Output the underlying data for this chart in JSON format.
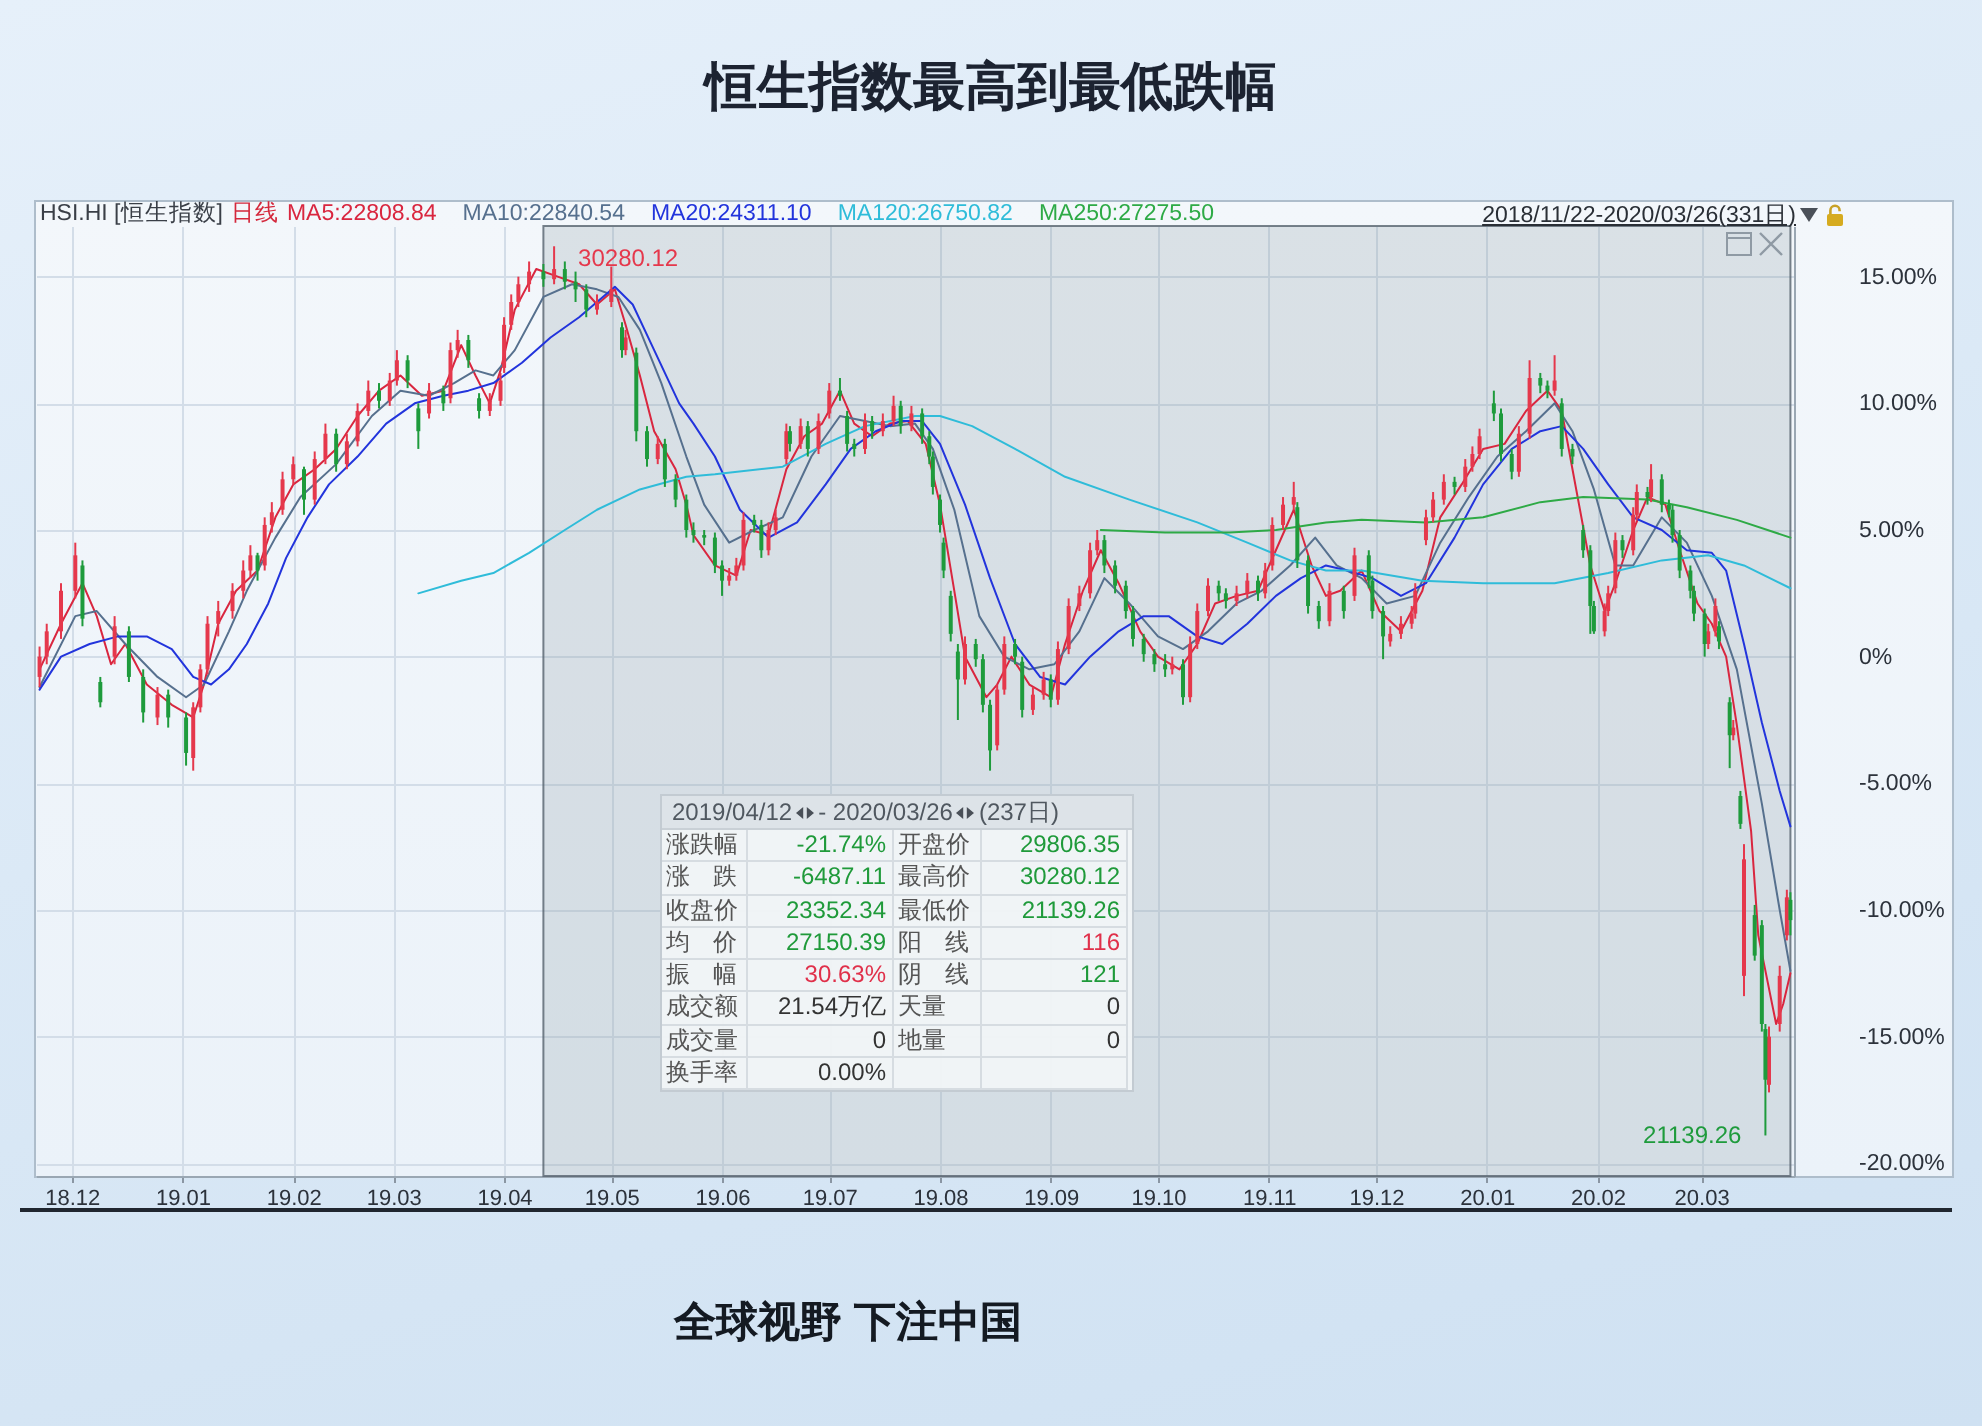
{
  "chart_data": {
    "type": "candlestick",
    "title": "恒生指数最高到最低跌幅",
    "subtitle": "HSI.HI [恒生指数]",
    "xlim": [
      "2018-11-21",
      "2020-03-27"
    ],
    "xticks": [
      {
        "value": "2018-12",
        "label": "18.12"
      },
      {
        "value": "2019-01",
        "label": "19.01"
      },
      {
        "value": "2019-02",
        "label": "19.02"
      },
      {
        "value": "2019-03",
        "label": "19.03"
      },
      {
        "value": "2019-04",
        "label": "19.04"
      },
      {
        "value": "2019-05",
        "label": "19.05"
      },
      {
        "value": "2019-06",
        "label": "19.06"
      },
      {
        "value": "2019-07",
        "label": "19.07"
      },
      {
        "value": "2019-08",
        "label": "19.08"
      },
      {
        "value": "2019-09",
        "label": "19.09"
      },
      {
        "value": "2019-10",
        "label": "19.10"
      },
      {
        "value": "2019-11",
        "label": "19.11"
      },
      {
        "value": "2019-12",
        "label": "19.12"
      },
      {
        "value": "2020-01",
        "label": "20.01"
      },
      {
        "value": "2020-02",
        "label": "20.02"
      },
      {
        "value": "2020-03",
        "label": "20.03"
      }
    ],
    "ylim": [
      -20.5,
      17
    ],
    "yticks": [
      {
        "value": 15,
        "label": "15.00%"
      },
      {
        "value": 10,
        "label": "10.00%"
      },
      {
        "value": 5,
        "label": "5.00%"
      },
      {
        "value": 0,
        "label": "0%"
      },
      {
        "value": -5,
        "label": "-5.00%"
      },
      {
        "value": -10,
        "label": "-10.00%"
      },
      {
        "value": -15,
        "label": "-15.00%"
      },
      {
        "value": -20,
        "label": "-20.00%"
      }
    ],
    "grid": true,
    "legend": "top left",
    "bands": [
      {
        "axis": "x",
        "from": "2019-04-12",
        "to": "2020-03-26",
        "color": "#8c99a5"
      }
    ],
    "series": [
      {
        "type": "line",
        "name": "MA5:22808.84",
        "color": "#d9263f",
        "x": [
          "2018-11-22",
          "2018-11-28",
          "2018-12-04",
          "2018-12-08",
          "2018-12-12",
          "2018-12-16",
          "2018-12-22",
          "2018-12-29",
          "2019-01-04",
          "2019-01-07",
          "2019-01-11",
          "2019-01-16",
          "2019-01-22",
          "2019-01-27",
          "2019-02-01",
          "2019-02-07",
          "2019-02-13",
          "2019-02-19",
          "2019-02-25",
          "2019-03-03",
          "2019-03-09",
          "2019-03-15",
          "2019-03-20",
          "2019-03-24",
          "2019-03-28",
          "2019-03-31",
          "2019-04-04",
          "2019-04-10",
          "2019-04-16",
          "2019-04-22",
          "2019-04-27",
          "2019-05-02",
          "2019-05-05",
          "2019-05-09",
          "2019-05-13",
          "2019-05-19",
          "2019-05-22",
          "2019-05-24",
          "2019-05-30",
          "2019-06-05",
          "2019-06-09",
          "2019-06-14",
          "2019-06-19",
          "2019-06-24",
          "2019-06-29",
          "2019-07-04",
          "2019-07-08",
          "2019-07-13",
          "2019-07-18",
          "2019-07-23",
          "2019-07-28",
          "2019-08-01",
          "2019-08-05",
          "2019-08-08",
          "2019-08-14",
          "2019-08-17",
          "2019-08-21",
          "2019-08-26",
          "2019-09-01",
          "2019-09-05",
          "2019-09-10",
          "2019-09-15",
          "2019-09-20",
          "2019-09-26",
          "2019-10-01",
          "2019-10-07",
          "2019-10-12",
          "2019-10-17",
          "2019-10-23",
          "2019-10-29",
          "2019-11-03",
          "2019-11-08",
          "2019-11-13",
          "2019-11-17",
          "2019-11-21",
          "2019-11-27",
          "2019-12-02",
          "2019-12-08",
          "2019-12-14",
          "2019-12-19",
          "2019-12-25",
          "2019-12-31",
          "2020-01-06",
          "2020-01-12",
          "2020-01-18",
          "2020-01-22",
          "2020-01-25",
          "2020-01-30",
          "2020-02-03",
          "2020-02-06",
          "2020-02-11",
          "2020-02-15",
          "2020-02-20",
          "2020-02-24",
          "2020-02-29",
          "2020-03-04",
          "2020-03-08",
          "2020-03-11",
          "2020-03-15",
          "2020-03-17",
          "2020-03-22",
          "2020-03-24",
          "2020-03-26"
        ],
        "values": [
          -0.5,
          1.3,
          2.9,
          1.6,
          -0.3,
          0.5,
          -1.1,
          -1.9,
          -2.4,
          -1.1,
          1.3,
          2.6,
          3.4,
          5.5,
          6.8,
          7.4,
          8.2,
          9.5,
          10.5,
          11.1,
          10.3,
          10.5,
          12.3,
          11.1,
          10.0,
          11.3,
          13.7,
          15.3,
          15.0,
          14.7,
          13.9,
          14.5,
          13.1,
          11.1,
          8.9,
          7.4,
          6.0,
          4.8,
          3.6,
          3.2,
          5.0,
          4.8,
          7.4,
          8.7,
          9.2,
          10.5,
          9.2,
          8.7,
          9.2,
          9.3,
          8.4,
          6.0,
          2.6,
          0.0,
          -1.6,
          -1.1,
          0.0,
          -1.1,
          -1.6,
          0.5,
          2.6,
          4.2,
          2.9,
          1.0,
          0.0,
          -0.5,
          0.5,
          2.1,
          2.4,
          2.6,
          4.2,
          5.8,
          3.6,
          2.4,
          2.6,
          3.4,
          1.8,
          1.0,
          2.6,
          5.5,
          6.8,
          8.2,
          8.4,
          9.7,
          10.5,
          9.7,
          7.4,
          3.6,
          1.8,
          2.9,
          5.0,
          6.3,
          6.0,
          4.2,
          2.1,
          1.3,
          0.0,
          -2.7,
          -6.9,
          -11.0,
          -14.5,
          -13.7,
          -12.5
        ]
      },
      {
        "type": "line",
        "name": "MA10:22840.54",
        "color": "#56708e",
        "x": [
          "2018-11-22",
          "2018-12-02",
          "2018-12-08",
          "2018-12-16",
          "2018-12-25",
          "2019-01-02",
          "2019-01-07",
          "2019-01-14",
          "2019-01-19",
          "2019-01-27",
          "2019-02-03",
          "2019-02-13",
          "2019-02-23",
          "2019-03-03",
          "2019-03-11",
          "2019-03-18",
          "2019-03-24",
          "2019-03-29",
          "2019-04-04",
          "2019-04-12",
          "2019-04-20",
          "2019-04-27",
          "2019-05-03",
          "2019-05-09",
          "2019-05-15",
          "2019-05-22",
          "2019-05-27",
          "2019-06-03",
          "2019-06-10",
          "2019-06-18",
          "2019-06-26",
          "2019-07-04",
          "2019-07-11",
          "2019-07-18",
          "2019-07-25",
          "2019-07-30",
          "2019-08-05",
          "2019-08-12",
          "2019-08-19",
          "2019-08-26",
          "2019-09-02",
          "2019-09-09",
          "2019-09-16",
          "2019-09-23",
          "2019-10-01",
          "2019-10-08",
          "2019-10-15",
          "2019-10-23",
          "2019-10-30",
          "2019-11-07",
          "2019-11-14",
          "2019-11-20",
          "2019-11-27",
          "2019-12-04",
          "2019-12-12",
          "2019-12-19",
          "2019-12-27",
          "2020-01-04",
          "2020-01-12",
          "2020-01-20",
          "2020-01-25",
          "2020-01-31",
          "2020-02-06",
          "2020-02-11",
          "2020-02-19",
          "2020-02-26",
          "2020-03-04",
          "2020-03-11",
          "2020-03-18",
          "2020-03-23",
          "2020-03-26"
        ],
        "values": [
          -1.2,
          1.6,
          1.8,
          0.5,
          -0.8,
          -1.6,
          -1.1,
          1.0,
          2.6,
          4.7,
          6.3,
          7.6,
          9.5,
          10.5,
          10.3,
          10.8,
          11.3,
          11.1,
          12.1,
          14.2,
          14.7,
          14.5,
          14.2,
          12.9,
          10.8,
          7.9,
          6.0,
          4.5,
          5.0,
          5.5,
          7.9,
          9.5,
          9.3,
          9.1,
          9.2,
          8.2,
          5.8,
          1.6,
          0.0,
          -0.5,
          -0.3,
          1.0,
          3.1,
          2.1,
          0.8,
          0.3,
          1.0,
          2.1,
          2.6,
          3.6,
          4.7,
          3.6,
          3.1,
          2.1,
          2.4,
          4.5,
          6.3,
          7.9,
          8.9,
          10.0,
          8.9,
          6.6,
          3.6,
          3.6,
          5.5,
          4.5,
          2.4,
          -0.5,
          -5.8,
          -10.0,
          -12.4
        ]
      },
      {
        "type": "line",
        "name": "MA20:24311.10",
        "color": "#2234dc",
        "x": [
          "2018-11-22",
          "2018-11-28",
          "2018-12-06",
          "2018-12-14",
          "2018-12-22",
          "2018-12-29",
          "2019-01-04",
          "2019-01-09",
          "2019-01-14",
          "2019-01-19",
          "2019-01-25",
          "2019-01-30",
          "2019-02-05",
          "2019-02-11",
          "2019-02-19",
          "2019-02-27",
          "2019-03-07",
          "2019-03-15",
          "2019-03-22",
          "2019-03-29",
          "2019-04-06",
          "2019-04-14",
          "2019-04-22",
          "2019-05-02",
          "2019-05-07",
          "2019-05-13",
          "2019-05-20",
          "2019-05-24",
          "2019-05-30",
          "2019-06-06",
          "2019-06-14",
          "2019-06-22",
          "2019-06-30",
          "2019-07-07",
          "2019-07-14",
          "2019-07-21",
          "2019-07-27",
          "2019-08-01",
          "2019-08-08",
          "2019-08-15",
          "2019-08-22",
          "2019-08-29",
          "2019-09-05",
          "2019-09-12",
          "2019-09-20",
          "2019-09-27",
          "2019-10-04",
          "2019-10-12",
          "2019-10-19",
          "2019-10-26",
          "2019-11-03",
          "2019-11-10",
          "2019-11-17",
          "2019-11-23",
          "2019-11-30",
          "2019-12-08",
          "2019-12-15",
          "2019-12-23",
          "2019-12-31",
          "2020-01-08",
          "2020-01-16",
          "2020-01-22",
          "2020-01-28",
          "2020-02-04",
          "2020-02-11",
          "2020-02-19",
          "2020-02-26",
          "2020-03-04",
          "2020-03-08",
          "2020-03-13",
          "2020-03-18",
          "2020-03-23",
          "2020-03-26"
        ],
        "values": [
          -1.3,
          0.0,
          0.5,
          0.8,
          0.8,
          0.3,
          -0.8,
          -1.1,
          -0.5,
          0.5,
          2.1,
          3.9,
          5.5,
          6.8,
          7.9,
          9.2,
          10.0,
          10.3,
          10.5,
          10.8,
          11.6,
          12.6,
          13.4,
          14.6,
          13.9,
          12.1,
          10.0,
          9.2,
          7.9,
          5.8,
          4.7,
          5.3,
          6.8,
          8.2,
          8.9,
          9.3,
          9.3,
          8.4,
          6.0,
          3.1,
          0.5,
          -0.8,
          -1.1,
          0.0,
          1.0,
          1.6,
          1.6,
          0.8,
          0.5,
          1.3,
          2.4,
          3.1,
          3.6,
          3.4,
          3.1,
          2.4,
          2.9,
          4.7,
          6.8,
          8.2,
          8.9,
          9.1,
          8.2,
          6.8,
          5.5,
          5.0,
          4.2,
          4.1,
          3.4,
          0.5,
          -2.6,
          -5.3,
          -6.7
        ]
      },
      {
        "type": "line",
        "name": "MA120:26750.82",
        "color": "#2fbcd9",
        "x": [
          "2019-03-08",
          "2019-03-20",
          "2019-03-29",
          "2019-04-08",
          "2019-04-18",
          "2019-04-27",
          "2019-05-09",
          "2019-05-22",
          "2019-05-30",
          "2019-06-18",
          "2019-06-30",
          "2019-07-11",
          "2019-07-25",
          "2019-08-01",
          "2019-08-10",
          "2019-08-22",
          "2019-09-05",
          "2019-09-23",
          "2019-10-12",
          "2019-10-26",
          "2019-11-07",
          "2019-11-17",
          "2019-11-27",
          "2019-12-14",
          "2019-12-31",
          "2020-01-20",
          "2020-02-04",
          "2020-02-19",
          "2020-03-03",
          "2020-03-13",
          "2020-03-26"
        ],
        "values": [
          2.5,
          3.0,
          3.3,
          4.1,
          5.0,
          5.8,
          6.6,
          7.1,
          7.2,
          7.5,
          8.4,
          9.1,
          9.5,
          9.5,
          9.1,
          8.2,
          7.1,
          6.2,
          5.3,
          4.5,
          3.8,
          3.4,
          3.4,
          3.0,
          2.9,
          2.9,
          3.3,
          3.8,
          4.0,
          3.6,
          2.7
        ]
      },
      {
        "type": "line",
        "name": "MA250:27275.50",
        "color": "#2eaa46",
        "x": [
          "2019-09-15",
          "2019-10-03",
          "2019-10-21",
          "2019-11-03",
          "2019-11-17",
          "2019-11-27",
          "2019-12-15",
          "2019-12-31",
          "2020-01-16",
          "2020-01-28",
          "2020-02-15",
          "2020-02-26",
          "2020-03-11",
          "2020-03-26"
        ],
        "values": [
          5.0,
          4.9,
          4.9,
          5.0,
          5.3,
          5.4,
          5.3,
          5.5,
          6.1,
          6.3,
          6.2,
          5.9,
          5.4,
          4.7
        ]
      },
      {
        "type": "candlestick",
        "color": "#e5384c",
        "x": [
          "2018-11-22",
          "2018-11-24",
          "2018-11-28",
          "2018-12-02",
          "2018-12-13",
          "2018-12-25",
          "2019-01-04",
          "2019-01-06",
          "2019-01-08",
          "2019-01-11",
          "2019-01-15",
          "2019-01-18",
          "2019-01-20",
          "2019-01-24",
          "2019-01-26",
          "2019-01-29",
          "2019-02-01",
          "2019-02-07",
          "2019-02-10",
          "2019-02-16",
          "2019-02-19",
          "2019-02-22",
          "2019-02-28",
          "2019-03-02",
          "2019-03-11",
          "2019-03-17",
          "2019-03-19",
          "2019-03-28",
          "2019-03-31",
          "2019-04-01",
          "2019-04-03",
          "2019-04-05",
          "2019-04-08",
          "2019-04-15",
          "2019-04-27",
          "2019-05-01",
          "2019-05-05",
          "2019-05-14",
          "2019-06-03",
          "2019-06-05",
          "2019-06-07",
          "2019-06-14",
          "2019-06-16",
          "2019-06-19",
          "2019-06-23",
          "2019-06-28",
          "2019-07-01",
          "2019-07-11",
          "2019-07-16",
          "2019-07-19",
          "2019-07-24",
          "2019-08-08",
          "2019-08-17",
          "2019-08-19",
          "2019-08-27",
          "2019-08-30",
          "2019-09-03",
          "2019-09-06",
          "2019-09-09",
          "2019-09-12",
          "2019-09-14",
          "2019-10-05",
          "2019-10-10",
          "2019-10-12",
          "2019-10-15",
          "2019-10-23",
          "2019-10-26",
          "2019-10-31",
          "2019-11-02",
          "2019-11-05",
          "2019-11-08",
          "2019-11-18",
          "2019-11-25",
          "2019-12-05",
          "2019-12-08",
          "2019-12-11",
          "2019-12-12",
          "2019-12-15",
          "2019-12-17",
          "2019-12-20",
          "2019-12-26",
          "2019-12-28",
          "2019-12-30",
          "2020-01-10",
          "2020-01-13",
          "2020-01-20",
          "2020-02-03",
          "2020-02-04",
          "2020-02-06",
          "2020-02-11",
          "2020-02-12",
          "2020-02-16",
          "2020-03-03",
          "2020-03-05",
          "2020-03-10",
          "2020-03-13",
          "2020-03-20",
          "2020-03-23",
          "2020-03-25"
        ],
        "ohlc": [
          [
            -0.8,
            0.4,
            -1.2,
            0.0
          ],
          [
            0.0,
            1.3,
            -0.3,
            1.0
          ],
          [
            1.0,
            2.9,
            0.7,
            2.6
          ],
          [
            2.6,
            4.5,
            2.3,
            4.0
          ],
          [
            0.0,
            1.6,
            -0.3,
            1.2
          ],
          [
            -2.4,
            -1.2,
            -2.7,
            -1.5
          ],
          [
            -4.0,
            -1.8,
            -4.5,
            -2.0
          ],
          [
            -2.0,
            -0.3,
            -2.2,
            -0.5
          ],
          [
            -0.5,
            1.6,
            -0.7,
            1.3
          ],
          [
            1.3,
            2.2,
            0.8,
            1.8
          ],
          [
            1.8,
            2.9,
            1.5,
            2.6
          ],
          [
            2.6,
            3.8,
            2.3,
            3.4
          ],
          [
            3.4,
            4.4,
            3.1,
            4.0
          ],
          [
            3.6,
            5.5,
            3.4,
            5.2
          ],
          [
            5.2,
            6.1,
            4.9,
            5.7
          ],
          [
            5.8,
            7.3,
            5.6,
            7.0
          ],
          [
            7.0,
            7.9,
            6.8,
            7.6
          ],
          [
            6.2,
            8.1,
            6.0,
            7.8
          ],
          [
            7.8,
            9.2,
            7.6,
            8.8
          ],
          [
            7.6,
            8.8,
            7.4,
            8.5
          ],
          [
            8.5,
            10.0,
            8.3,
            9.7
          ],
          [
            9.7,
            10.9,
            9.5,
            10.5
          ],
          [
            10.1,
            11.2,
            9.9,
            10.9
          ],
          [
            10.9,
            12.1,
            10.7,
            11.7
          ],
          [
            9.6,
            10.8,
            9.4,
            10.5
          ],
          [
            10.2,
            12.4,
            10.0,
            12.1
          ],
          [
            12.1,
            12.9,
            11.8,
            12.5
          ],
          [
            9.7,
            10.4,
            9.5,
            10.1
          ],
          [
            10.1,
            11.2,
            9.9,
            10.9
          ],
          [
            11.4,
            13.4,
            11.2,
            13.1
          ],
          [
            13.1,
            14.3,
            12.9,
            14.0
          ],
          [
            14.0,
            15.0,
            13.8,
            14.7
          ],
          [
            14.7,
            15.6,
            14.4,
            15.2
          ],
          [
            14.9,
            16.2,
            14.7,
            15.3
          ],
          [
            13.7,
            14.3,
            13.5,
            14.0
          ],
          [
            14.0,
            15.4,
            13.8,
            14.5
          ],
          [
            12.1,
            12.9,
            11.9,
            12.6
          ],
          [
            7.8,
            8.7,
            7.6,
            8.4
          ],
          [
            3.0,
            3.5,
            2.8,
            3.2
          ],
          [
            3.2,
            3.9,
            3.0,
            3.6
          ],
          [
            3.6,
            5.7,
            3.4,
            5.4
          ],
          [
            4.2,
            5.3,
            4.0,
            5.0
          ],
          [
            5.0,
            5.8,
            4.8,
            5.5
          ],
          [
            7.8,
            9.2,
            7.6,
            8.9
          ],
          [
            8.4,
            9.4,
            8.2,
            9.1
          ],
          [
            8.2,
            9.6,
            8.0,
            9.3
          ],
          [
            9.6,
            10.8,
            9.4,
            10.5
          ],
          [
            8.2,
            9.6,
            8.0,
            9.3
          ],
          [
            8.9,
            9.6,
            8.7,
            9.3
          ],
          [
            9.3,
            10.3,
            9.1,
            9.9
          ],
          [
            9.1,
            9.9,
            8.9,
            9.6
          ],
          [
            -0.9,
            0.8,
            -1.1,
            0.5
          ],
          [
            -3.5,
            -1.1,
            -3.7,
            -1.3
          ],
          [
            -1.3,
            0.8,
            -1.5,
            0.5
          ],
          [
            -2.1,
            -1.2,
            -2.3,
            -1.5
          ],
          [
            -1.5,
            -0.6,
            -1.7,
            -0.9
          ],
          [
            -1.7,
            0.6,
            -1.9,
            0.3
          ],
          [
            0.3,
            2.3,
            0.1,
            2.0
          ],
          [
            2.0,
            2.8,
            1.8,
            2.5
          ],
          [
            2.5,
            4.5,
            2.3,
            4.2
          ],
          [
            4.2,
            5.0,
            4.0,
            4.6
          ],
          [
            -0.5,
            0.0,
            -0.7,
            -0.3
          ],
          [
            -1.6,
            0.8,
            -1.8,
            0.5
          ],
          [
            0.5,
            2.1,
            0.3,
            1.8
          ],
          [
            1.8,
            3.1,
            1.6,
            2.8
          ],
          [
            2.2,
            2.8,
            2.0,
            2.5
          ],
          [
            2.5,
            3.3,
            2.3,
            3.0
          ],
          [
            2.5,
            3.7,
            2.3,
            3.4
          ],
          [
            3.6,
            5.5,
            3.4,
            5.2
          ],
          [
            5.2,
            6.3,
            5.0,
            6.0
          ],
          [
            6.0,
            6.9,
            5.8,
            6.3
          ],
          [
            1.4,
            2.9,
            1.2,
            2.6
          ],
          [
            2.4,
            4.3,
            2.2,
            4.0
          ],
          [
            0.6,
            1.2,
            0.4,
            0.9
          ],
          [
            0.9,
            1.6,
            0.7,
            1.3
          ],
          [
            1.3,
            2.0,
            1.1,
            1.7
          ],
          [
            1.7,
            2.9,
            1.5,
            2.6
          ],
          [
            4.6,
            5.8,
            4.4,
            5.5
          ],
          [
            5.5,
            6.5,
            5.3,
            6.2
          ],
          [
            6.2,
            7.2,
            6.0,
            6.9
          ],
          [
            6.7,
            7.8,
            6.5,
            7.5
          ],
          [
            7.5,
            8.3,
            7.3,
            8.0
          ],
          [
            8.0,
            9.0,
            7.8,
            8.7
          ],
          [
            7.3,
            9.1,
            7.1,
            8.8
          ],
          [
            8.8,
            11.7,
            8.6,
            11.0
          ],
          [
            10.5,
            11.9,
            10.3,
            10.9
          ],
          [
            1.0,
            2.1,
            0.8,
            1.8
          ],
          [
            1.8,
            2.8,
            1.6,
            2.5
          ],
          [
            2.7,
            4.9,
            2.5,
            4.6
          ],
          [
            4.2,
            5.9,
            4.0,
            5.6
          ],
          [
            5.6,
            6.8,
            5.4,
            6.5
          ],
          [
            6.3,
            7.6,
            6.1,
            7.0
          ],
          [
            0.5,
            1.3,
            0.3,
            1.0
          ],
          [
            1.0,
            2.3,
            0.8,
            2.0
          ],
          [
            -3.1,
            -2.5,
            -3.3,
            -2.8
          ],
          [
            -12.6,
            -7.4,
            -13.4,
            -8.0
          ],
          [
            -16.9,
            -14.6,
            -17.2,
            -15.0
          ],
          [
            -14.5,
            -12.2,
            -14.8,
            -12.6
          ],
          [
            -11.0,
            -9.2,
            -11.2,
            -9.5
          ]
        ]
      },
      {
        "type": "candlestick",
        "color": "#1e9b3c",
        "x": [
          "2018-12-04",
          "2018-12-09",
          "2018-12-17",
          "2018-12-21",
          "2018-12-28",
          "2019-01-02",
          "2019-01-22",
          "2019-02-04",
          "2019-02-13",
          "2019-02-25",
          "2019-03-05",
          "2019-03-08",
          "2019-03-15",
          "2019-03-22",
          "2019-03-25",
          "2019-04-12",
          "2019-04-18",
          "2019-04-21",
          "2019-04-24",
          "2019-05-04",
          "2019-05-08",
          "2019-05-11",
          "2019-05-16",
          "2019-05-19",
          "2019-05-22",
          "2019-05-24",
          "2019-05-27",
          "2019-05-30",
          "2019-06-01",
          "2019-06-10",
          "2019-06-12",
          "2019-06-20",
          "2019-06-25",
          "2019-07-04",
          "2019-07-06",
          "2019-07-08",
          "2019-07-13",
          "2019-07-21",
          "2019-07-27",
          "2019-07-29",
          "2019-07-30",
          "2019-08-01",
          "2019-08-02",
          "2019-08-04",
          "2019-08-06",
          "2019-08-11",
          "2019-08-13",
          "2019-08-15",
          "2019-08-22",
          "2019-08-24",
          "2019-09-01",
          "2019-09-16",
          "2019-09-19",
          "2019-09-22",
          "2019-09-24",
          "2019-09-27",
          "2019-09-30",
          "2019-10-03",
          "2019-10-08",
          "2019-10-18",
          "2019-10-20",
          "2019-10-29",
          "2019-11-09",
          "2019-11-12",
          "2019-11-15",
          "2019-11-22",
          "2019-11-29",
          "2019-11-30",
          "2019-12-03",
          "2019-12-23",
          "2020-01-03",
          "2020-01-05",
          "2020-01-08",
          "2020-01-16",
          "2020-01-18",
          "2020-01-22",
          "2020-01-25",
          "2020-01-28",
          "2020-01-30",
          "2020-01-31",
          "2020-02-08",
          "2020-02-15",
          "2020-02-19",
          "2020-02-21",
          "2020-02-22",
          "2020-02-24",
          "2020-02-27",
          "2020-02-28",
          "2020-03-02",
          "2020-03-06",
          "2020-03-09",
          "2020-03-12",
          "2020-03-16",
          "2020-03-18",
          "2020-03-19",
          "2020-03-26"
        ],
        "ohlc": [
          [
            3.6,
            3.8,
            1.2,
            1.5
          ],
          [
            -1.0,
            -0.8,
            -2.0,
            -1.8
          ],
          [
            1.0,
            1.2,
            -1.0,
            -0.8
          ],
          [
            -0.8,
            -0.5,
            -2.6,
            -2.2
          ],
          [
            -1.5,
            -1.3,
            -2.8,
            -2.4
          ],
          [
            -2.4,
            -2.2,
            -4.3,
            -3.8
          ],
          [
            4.0,
            4.1,
            3.0,
            3.4
          ],
          [
            7.4,
            7.5,
            5.6,
            6.2
          ],
          [
            8.8,
            9.0,
            7.3,
            7.6
          ],
          [
            10.5,
            10.8,
            9.8,
            10.1
          ],
          [
            11.7,
            11.9,
            10.6,
            10.9
          ],
          [
            9.8,
            10.0,
            8.2,
            8.9
          ],
          [
            10.5,
            10.7,
            9.7,
            10.0
          ],
          [
            12.5,
            12.7,
            11.4,
            11.7
          ],
          [
            10.2,
            10.4,
            9.4,
            9.7
          ],
          [
            15.2,
            15.5,
            14.6,
            14.9
          ],
          [
            15.3,
            15.6,
            14.5,
            14.8
          ],
          [
            14.8,
            15.2,
            14.0,
            14.5
          ],
          [
            14.5,
            14.7,
            13.4,
            13.7
          ],
          [
            13.0,
            13.2,
            11.8,
            12.1
          ],
          [
            12.0,
            12.2,
            8.5,
            8.9
          ],
          [
            8.9,
            9.1,
            7.5,
            7.8
          ],
          [
            8.4,
            8.6,
            6.7,
            7.0
          ],
          [
            7.0,
            7.2,
            5.9,
            6.2
          ],
          [
            6.2,
            6.4,
            4.7,
            5.0
          ],
          [
            5.0,
            5.3,
            4.5,
            4.8
          ],
          [
            4.8,
            5.0,
            4.4,
            4.7
          ],
          [
            4.7,
            4.9,
            3.3,
            3.6
          ],
          [
            3.6,
            3.8,
            2.4,
            3.0
          ],
          [
            5.4,
            5.6,
            4.9,
            5.2
          ],
          [
            5.2,
            5.4,
            3.9,
            4.2
          ],
          [
            8.9,
            9.1,
            8.1,
            8.4
          ],
          [
            9.1,
            9.3,
            7.9,
            8.2
          ],
          [
            10.5,
            11.0,
            10.1,
            10.3
          ],
          [
            9.5,
            9.7,
            8.1,
            8.4
          ],
          [
            8.4,
            8.6,
            7.9,
            8.2
          ],
          [
            9.3,
            9.5,
            8.6,
            8.9
          ],
          [
            9.9,
            10.1,
            8.8,
            9.1
          ],
          [
            9.6,
            9.8,
            8.4,
            8.7
          ],
          [
            8.7,
            8.9,
            7.6,
            7.9
          ],
          [
            7.9,
            8.1,
            6.4,
            6.7
          ],
          [
            6.2,
            6.4,
            4.9,
            5.2
          ],
          [
            4.5,
            4.7,
            3.1,
            3.4
          ],
          [
            2.4,
            2.6,
            0.6,
            0.9
          ],
          [
            0.2,
            0.5,
            -2.5,
            -0.9
          ],
          [
            0.5,
            0.7,
            -0.4,
            -0.1
          ],
          [
            -0.1,
            0.1,
            -2.2,
            -1.9
          ],
          [
            -1.9,
            -1.7,
            -4.5,
            -3.7
          ],
          [
            0.5,
            0.7,
            -0.3,
            0.0
          ],
          [
            -0.2,
            0.0,
            -2.4,
            -2.1
          ],
          [
            -0.9,
            -0.7,
            -2.0,
            -1.7
          ],
          [
            4.6,
            4.8,
            3.3,
            3.6
          ],
          [
            3.6,
            3.8,
            2.5,
            2.8
          ],
          [
            2.8,
            3.0,
            1.5,
            1.8
          ],
          [
            1.8,
            2.0,
            0.4,
            0.7
          ],
          [
            0.7,
            0.9,
            -0.2,
            0.1
          ],
          [
            0.1,
            0.3,
            -0.6,
            -0.3
          ],
          [
            -0.3,
            0.1,
            -0.8,
            -0.5
          ],
          [
            -0.3,
            -0.1,
            -1.9,
            -1.6
          ],
          [
            2.8,
            3.0,
            2.2,
            2.5
          ],
          [
            2.5,
            2.7,
            1.9,
            2.2
          ],
          [
            3.0,
            3.2,
            2.2,
            2.5
          ],
          [
            5.9,
            6.1,
            3.5,
            3.8
          ],
          [
            3.8,
            4.0,
            1.7,
            2.0
          ],
          [
            2.0,
            2.2,
            1.1,
            1.4
          ],
          [
            2.6,
            2.8,
            1.5,
            1.8
          ],
          [
            4.0,
            4.2,
            2.7,
            3.0
          ],
          [
            3.0,
            3.2,
            1.5,
            1.8
          ],
          [
            1.8,
            2.0,
            -0.1,
            0.8
          ],
          [
            6.9,
            7.1,
            6.4,
            6.7
          ],
          [
            10.0,
            10.5,
            9.3,
            9.6
          ],
          [
            9.6,
            9.8,
            7.7,
            8.0
          ],
          [
            8.0,
            8.2,
            7.0,
            7.3
          ],
          [
            11.0,
            11.2,
            10.4,
            10.7
          ],
          [
            10.7,
            10.9,
            10.2,
            10.5
          ],
          [
            10.0,
            10.2,
            7.9,
            8.2
          ],
          [
            8.2,
            8.4,
            7.6,
            7.9
          ],
          [
            5.0,
            5.2,
            3.9,
            4.2
          ],
          [
            4.2,
            4.4,
            0.9,
            2.0
          ],
          [
            2.0,
            2.2,
            0.9,
            1.0
          ],
          [
            4.6,
            4.8,
            3.9,
            4.2
          ],
          [
            6.5,
            6.7,
            6.0,
            6.3
          ],
          [
            7.0,
            7.2,
            5.7,
            6.0
          ],
          [
            6.0,
            6.2,
            5.5,
            5.8
          ],
          [
            5.8,
            6.0,
            4.5,
            4.8
          ],
          [
            4.8,
            5.0,
            3.1,
            3.4
          ],
          [
            3.4,
            3.6,
            2.3,
            2.6
          ],
          [
            2.6,
            2.8,
            1.4,
            1.7
          ],
          [
            1.7,
            1.9,
            0.0,
            0.5
          ],
          [
            1.2,
            1.4,
            0.3,
            0.6
          ],
          [
            -1.8,
            -1.6,
            -4.4,
            -3.1
          ],
          [
            -5.5,
            -5.3,
            -6.8,
            -6.6
          ],
          [
            -10.2,
            -9.8,
            -12.0,
            -11.8
          ],
          [
            -10.6,
            -10.4,
            -14.8,
            -14.5
          ],
          [
            -14.7,
            -14.5,
            -18.9,
            -16.7
          ],
          [
            -9.6,
            -9.3,
            -11.0,
            -10.4
          ]
        ]
      }
    ],
    "annotations": [
      {
        "text": "30280.12",
        "x": "2019-04-15",
        "y": 16.2
      },
      {
        "text": "21139.26",
        "x": "2020-03-19",
        "y": -18.9
      },
      "日线",
      "2018/11/22-2020/03/26(331日)",
      "2019/04/12",
      "- 2020/03/26",
      "(237日)",
      "涨跌幅",
      "-21.74%",
      "开盘价",
      "29806.35",
      "涨 跌",
      "-6487.11",
      "最高价",
      "30280.12",
      "收盘价",
      "23352.34",
      "最低价",
      "21139.26",
      "均 价",
      "27150.39",
      "阳 线",
      "116",
      "振 幅",
      "30.63%",
      "阴 线",
      "121",
      "成交额",
      "21.54万亿",
      "天量",
      "0",
      "成交量",
      "0",
      "地量",
      "0",
      "换手率",
      "0.00%",
      "全球视野 下注中国"
    ]
  }
}
